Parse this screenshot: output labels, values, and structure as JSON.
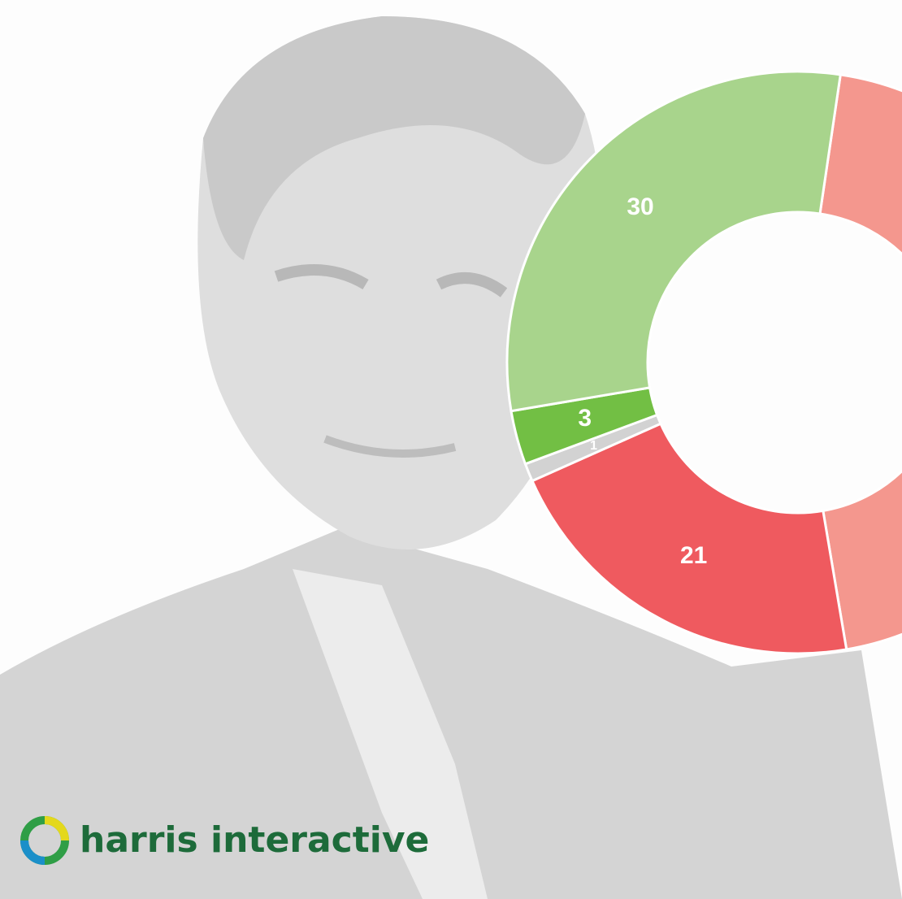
{
  "chart_data": {
    "type": "donut",
    "values": [
      45,
      21,
      1,
      3,
      30
    ],
    "colors": [
      "#f4978e",
      "#ef5a5f",
      "#d2d2d2",
      "#72bf44",
      "#a8d48c"
    ]
  },
  "logo": "harris interactive"
}
